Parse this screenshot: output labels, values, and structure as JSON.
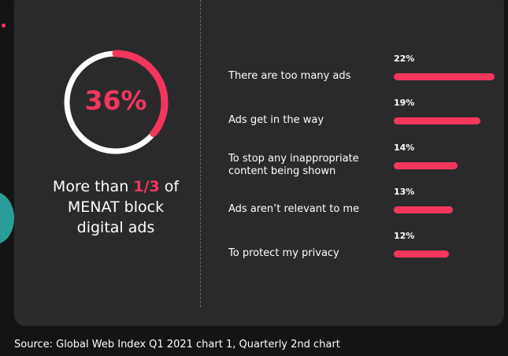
{
  "chart_data": [
    {
      "type": "donut",
      "values": [
        36
      ],
      "value_labels": [
        "36%"
      ],
      "color": "#f5365c",
      "track_color": "#ffffff",
      "caption": [
        "More than",
        "1/3",
        "of",
        "MENAT block",
        "digital ads"
      ]
    },
    {
      "type": "bar",
      "orientation": "horizontal",
      "color": "#f5365c",
      "categories": [
        "There are too many ads",
        "Ads get in the way",
        "To stop any inappropriate content being shown",
        "Ads aren’t relevant to me",
        "To protect my privacy"
      ],
      "values": [
        22,
        19,
        14,
        13,
        12
      ],
      "value_labels": [
        "22%",
        "19%",
        "14%",
        "13%",
        "12%"
      ]
    }
  ],
  "source": "Source: Global Web Index Q1 2021 chart 1, Quarterly 2nd chart"
}
